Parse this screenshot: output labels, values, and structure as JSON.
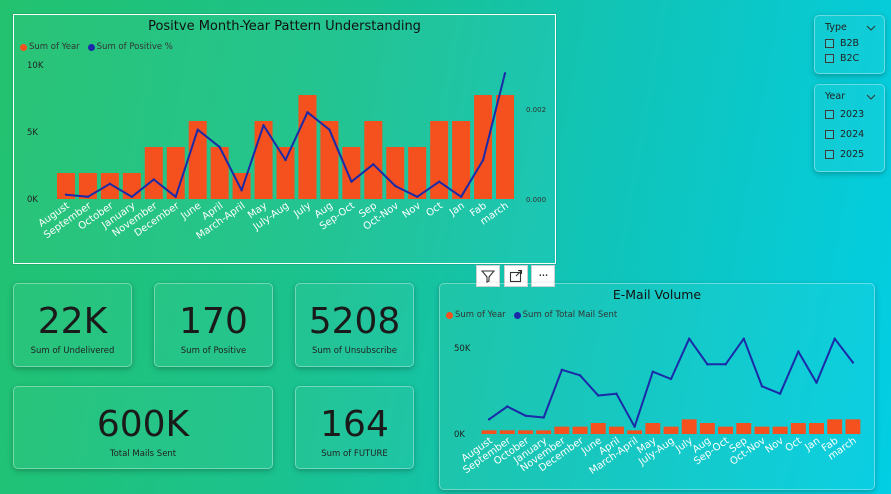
{
  "chart1": {
    "title": "Positve Month-Year Pattern Understanding",
    "legend": [
      {
        "label": "Sum of Year",
        "color": "#f4511e"
      },
      {
        "label": "Sum of Positive %",
        "color": "#1a2aa8"
      }
    ],
    "y_ticks_left": [
      "10K",
      "5K",
      "0K"
    ],
    "y_ticks_right": [
      "0.002",
      "0.000"
    ]
  },
  "chart2": {
    "title": "E-Mail Volume",
    "legend": [
      {
        "label": "Sum of Year",
        "color": "#f4511e"
      },
      {
        "label": "Sum of Total Mail Sent",
        "color": "#1a2aa8"
      }
    ],
    "y_ticks_left": [
      "50K",
      "0K"
    ]
  },
  "chart_data": [
    {
      "type": "bar",
      "title": "Positve Month-Year Pattern Understanding",
      "categories": [
        "August",
        "September",
        "October",
        "January",
        "November",
        "December",
        "June",
        "April",
        "March-April",
        "May",
        "July-Aug",
        "July",
        "Aug",
        "Sep-Oct",
        "Sep",
        "Oct-Nov",
        "Nov",
        "Oct",
        "Jan",
        "Fab",
        "march"
      ],
      "series": [
        {
          "name": "Sum of Year",
          "kind": "bar",
          "axis": "left",
          "values": [
            2000,
            2000,
            2000,
            2000,
            4000,
            4000,
            6000,
            4000,
            2000,
            6000,
            4000,
            8000,
            6000,
            4000,
            6000,
            4000,
            4000,
            6000,
            6000,
            8000,
            8000
          ]
        },
        {
          "name": "Sum of Positive %",
          "kind": "line",
          "axis": "right",
          "values": [
            0.0001,
            5e-05,
            0.00035,
            5e-05,
            0.00045,
            5e-05,
            0.0016,
            0.0012,
            0.0002,
            0.0017,
            0.0009,
            0.002,
            0.0016,
            0.0004,
            0.0008,
            0.0003,
            5e-05,
            0.0004,
            5e-05,
            0.0009,
            0.0029
          ]
        }
      ],
      "ylim": [
        0,
        10000
      ],
      "ylim_right": [
        0,
        0.003
      ],
      "legend_position": "top-left",
      "grid": false
    },
    {
      "type": "bar",
      "title": "E-Mail Volume",
      "categories": [
        "August",
        "September",
        "October",
        "January",
        "November",
        "December",
        "June",
        "April",
        "March-April",
        "May",
        "July-Aug",
        "July",
        "Aug",
        "Sep-Oct",
        "Sep",
        "Oct-Nov",
        "Nov",
        "Oct",
        "Jan",
        "Fab",
        "march"
      ],
      "series": [
        {
          "name": "Sum of Year",
          "kind": "bar",
          "values": [
            2000,
            2000,
            2000,
            2000,
            4000,
            4000,
            6000,
            4000,
            2000,
            6000,
            4000,
            8000,
            6000,
            4000,
            6000,
            4000,
            4000,
            6000,
            6000,
            8000,
            8000
          ]
        },
        {
          "name": "Sum of Total Mail Sent",
          "kind": "line",
          "values": [
            8000,
            15000,
            10000,
            9000,
            35000,
            32000,
            21000,
            22000,
            4000,
            34000,
            30000,
            52000,
            38000,
            38000,
            52000,
            26000,
            22000,
            45000,
            28000,
            52000,
            39000
          ]
        }
      ],
      "ylim": [
        0,
        60000
      ],
      "legend_position": "top-left",
      "grid": false
    }
  ],
  "cards": [
    {
      "value": "22K",
      "label": "Sum of Undelivered"
    },
    {
      "value": "170",
      "label": "Sum of Positive"
    },
    {
      "value": "5208",
      "label": "Sum of Unsubscribe"
    },
    {
      "value": "600K",
      "label": "Total Mails Sent"
    },
    {
      "value": "164",
      "label": "Sum of FUTURE"
    }
  ],
  "slicer_type": {
    "title": "Type",
    "items": [
      "B2B",
      "B2C"
    ]
  },
  "slicer_year": {
    "title": "Year",
    "items": [
      "2023",
      "2024",
      "2025"
    ]
  },
  "visual_header": {
    "filter_icon": "filter-icon",
    "focus_icon": "focus-mode-icon",
    "more_icon": "more-options-icon",
    "more_label": "···"
  }
}
